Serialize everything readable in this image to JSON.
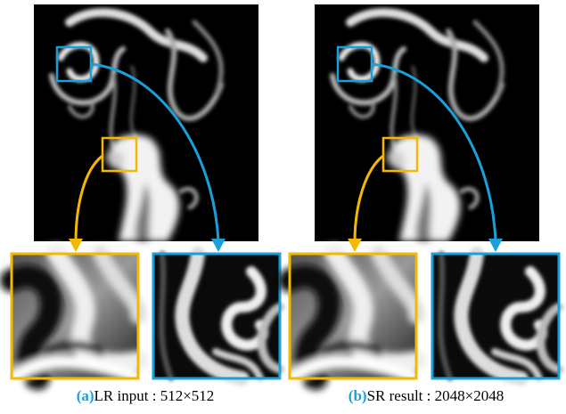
{
  "panels": [
    {
      "label": "(a)",
      "caption": "LR input : 512×512"
    },
    {
      "label": "(b)",
      "caption": "SR result : 2048×2048"
    }
  ]
}
